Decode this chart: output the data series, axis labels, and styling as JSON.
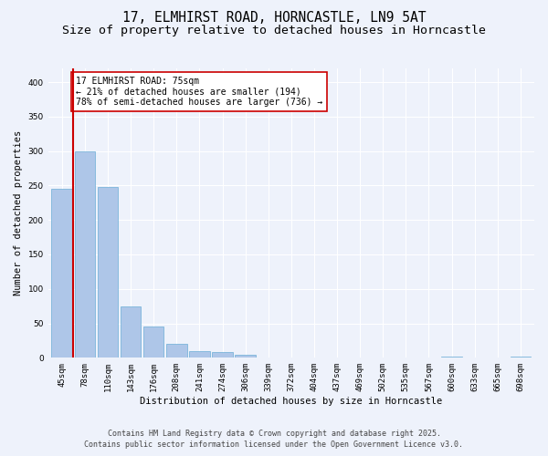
{
  "title_line1": "17, ELMHIRST ROAD, HORNCASTLE, LN9 5AT",
  "title_line2": "Size of property relative to detached houses in Horncastle",
  "xlabel": "Distribution of detached houses by size in Horncastle",
  "ylabel": "Number of detached properties",
  "categories": [
    "45sqm",
    "78sqm",
    "110sqm",
    "143sqm",
    "176sqm",
    "208sqm",
    "241sqm",
    "274sqm",
    "306sqm",
    "339sqm",
    "372sqm",
    "404sqm",
    "437sqm",
    "469sqm",
    "502sqm",
    "535sqm",
    "567sqm",
    "600sqm",
    "633sqm",
    "665sqm",
    "698sqm"
  ],
  "values": [
    245,
    300,
    248,
    75,
    45,
    20,
    10,
    8,
    5,
    0,
    0,
    0,
    0,
    0,
    0,
    0,
    0,
    2,
    0,
    0,
    2
  ],
  "bar_color": "#aec6e8",
  "bar_edge_color": "#6baed6",
  "vline_color": "#cc0000",
  "annotation_text": "17 ELMHIRST ROAD: 75sqm\n← 21% of detached houses are smaller (194)\n78% of semi-detached houses are larger (736) →",
  "annotation_box_color": "#ffffff",
  "annotation_box_edge_color": "#cc0000",
  "ylim": [
    0,
    420
  ],
  "yticks": [
    0,
    50,
    100,
    150,
    200,
    250,
    300,
    350,
    400
  ],
  "background_color": "#eef2fb",
  "plot_background": "#eef2fb",
  "footer_line1": "Contains HM Land Registry data © Crown copyright and database right 2025.",
  "footer_line2": "Contains public sector information licensed under the Open Government Licence v3.0.",
  "title_fontsize": 10.5,
  "subtitle_fontsize": 9.5,
  "axis_label_fontsize": 7.5,
  "tick_fontsize": 6.5,
  "annotation_fontsize": 7,
  "footer_fontsize": 6
}
